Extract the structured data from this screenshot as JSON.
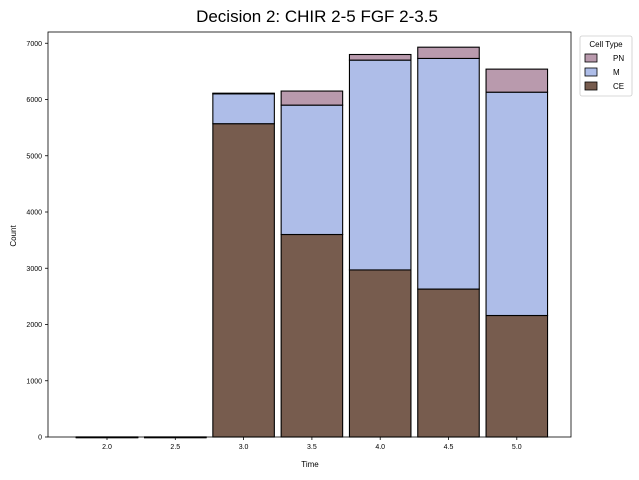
{
  "chart_data": {
    "type": "bar",
    "stacked": true,
    "title": "Decision 2: CHIR 2-5 FGF 2-3.5",
    "xlabel": "Time",
    "ylabel": "Count",
    "categories": [
      "2.0",
      "2.5",
      "3.0",
      "3.5",
      "4.0",
      "4.5",
      "5.0"
    ],
    "ylim": [
      0,
      7200
    ],
    "yticks": [
      0,
      1000,
      2000,
      3000,
      4000,
      5000,
      6000,
      7000
    ],
    "legend": {
      "title": "Cell Type",
      "position": "top-right outside"
    },
    "series": [
      {
        "name": "CE",
        "color": "#775c4e",
        "values": [
          0,
          0,
          5570,
          3600,
          2970,
          2630,
          2160
        ]
      },
      {
        "name": "M",
        "color": "#aebde8",
        "values": [
          0,
          0,
          540,
          2300,
          3730,
          4100,
          3970
        ]
      },
      {
        "name": "PN",
        "color": "#b99aad",
        "values": [
          0,
          0,
          0,
          250,
          100,
          200,
          410
        ]
      }
    ],
    "legend_order": [
      "PN",
      "M",
      "CE"
    ],
    "grid": false
  }
}
